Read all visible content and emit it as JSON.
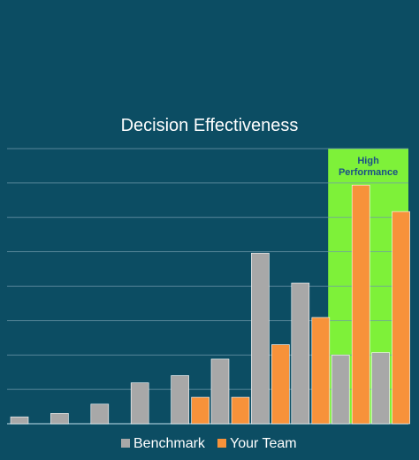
{
  "chart_data": {
    "type": "bar",
    "title": "Decision Effectiveness",
    "xlabel": "",
    "ylabel": "",
    "ylim": [
      0,
      8
    ],
    "grid": true,
    "categories": [
      "",
      "",
      "",
      "",
      "",
      "",
      "",
      "",
      "",
      ""
    ],
    "series": [
      {
        "name": "Benchmark",
        "color": "#a8a8a8",
        "values": [
          0.2,
          0.3,
          0.57,
          1.19,
          1.4,
          1.88,
          4.96,
          4.09,
          2.0,
          2.07
        ]
      },
      {
        "name": "Your Team",
        "color": "#f7923a",
        "values": [
          null,
          null,
          null,
          null,
          0.77,
          0.77,
          2.3,
          3.09,
          6.94,
          6.17
        ]
      }
    ],
    "highlight": {
      "label_line1": "High",
      "label_line2": "Performance",
      "color": "#7ef139",
      "categories_range": [
        8,
        9
      ]
    },
    "legend": {
      "position": "bottom"
    }
  }
}
